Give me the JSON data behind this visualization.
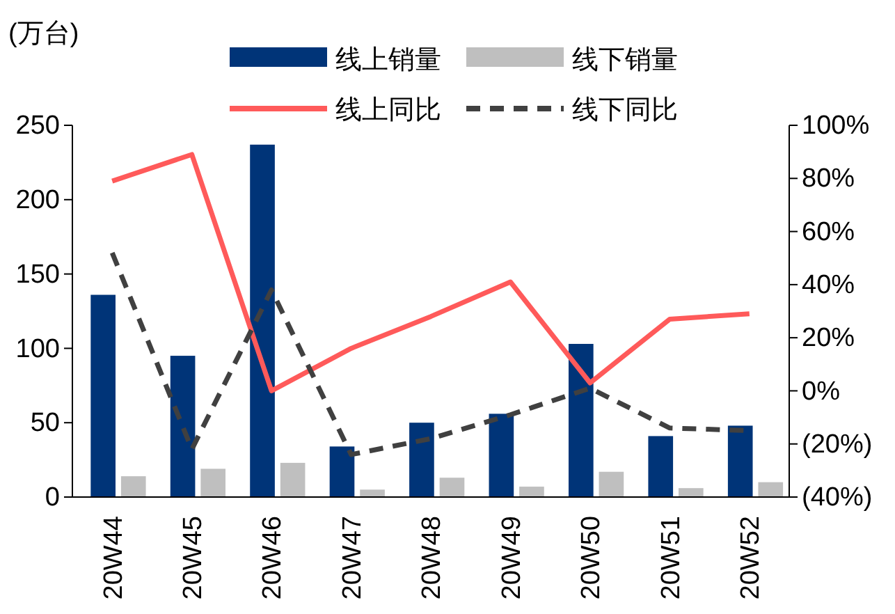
{
  "chart_data": {
    "type": "bar",
    "ylabel": "(万台)",
    "categories": [
      "20W44",
      "20W45",
      "20W46",
      "20W47",
      "20W48",
      "20W49",
      "20W50",
      "20W51",
      "20W52"
    ],
    "series": [
      {
        "name": "线上销量",
        "color": "#003478",
        "values": [
          136,
          95,
          237,
          34,
          50,
          56,
          103,
          41,
          48
        ]
      },
      {
        "name": "线下销量",
        "color": "#bfbfbf",
        "values": [
          14,
          19,
          23,
          5,
          13,
          7,
          17,
          6,
          10
        ]
      },
      {
        "name": "线上同比",
        "type": "line",
        "axis": "y2",
        "color": "#ff5a5a",
        "line_style": "solid",
        "values": [
          79,
          89,
          0,
          16,
          28,
          41,
          3,
          27,
          29
        ]
      },
      {
        "name": "线下同比",
        "type": "line",
        "axis": "y2",
        "color": "#404040",
        "line_style": "dashed",
        "values": [
          52,
          -22,
          38,
          -24,
          -18,
          -9,
          1,
          -14,
          -15
        ]
      }
    ],
    "ylim": [
      0,
      250
    ],
    "yticks": [
      0,
      50,
      100,
      150,
      200,
      250
    ],
    "y2lim": [
      -40,
      100
    ],
    "y2ticks": [
      {
        "value": -40,
        "label": "(40%)"
      },
      {
        "value": -20,
        "label": "(20%)"
      },
      {
        "value": 0,
        "label": "0%"
      },
      {
        "value": 20,
        "label": "20%"
      },
      {
        "value": 40,
        "label": "40%"
      },
      {
        "value": 60,
        "label": "60%"
      },
      {
        "value": 80,
        "label": "80%"
      },
      {
        "value": 100,
        "label": "100%"
      }
    ],
    "grid": false,
    "legend": "top",
    "marker": "none"
  }
}
